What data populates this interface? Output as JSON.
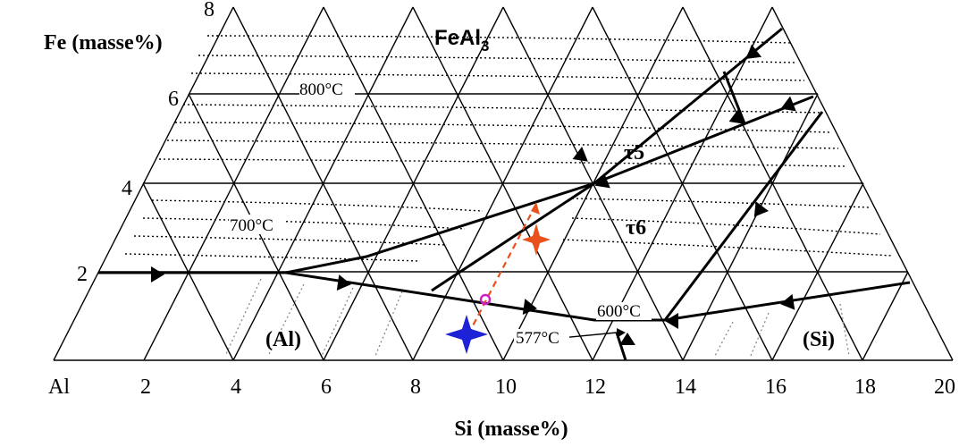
{
  "axes": {
    "x_label": "Si (masse%)",
    "y_label": "Fe (masse%)",
    "x_ticks": [
      "Al",
      "2",
      "4",
      "6",
      "8",
      "10",
      "12",
      "14",
      "16",
      "18",
      "20"
    ],
    "y_ticks": [
      "2",
      "4",
      "6",
      "8"
    ]
  },
  "phases": {
    "fe_al_base": "FeAl",
    "fe_al_sub": "3",
    "tau5": "τ5",
    "tau6": "τ6",
    "al": "(Al)",
    "si": "(Si)"
  },
  "isotherms": {
    "t800": "800°C",
    "t700": "700°C",
    "t600": "600°C",
    "t577": "577°C"
  },
  "colors": {
    "line": "#000000",
    "dashed_path": "#e8501c",
    "alloy_marker": "#1e22d6",
    "intersection": "#d01ec8"
  }
}
